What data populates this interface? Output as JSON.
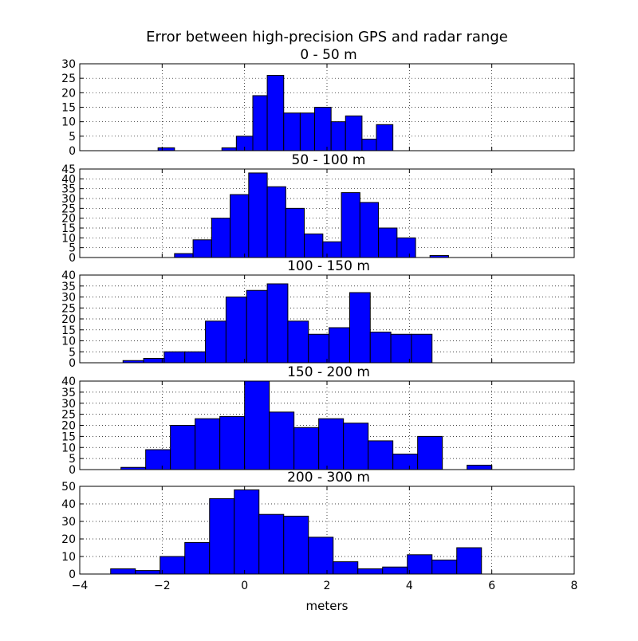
{
  "title": "Error between high-precision GPS and radar range",
  "xlabel": "meters",
  "bar_color": "#0000ff",
  "chart_data": [
    {
      "type": "bar",
      "subtitle": "0 - 50 m",
      "xlim": [
        -4,
        8
      ],
      "ylim": [
        0,
        30
      ],
      "yticks": [
        0,
        5,
        10,
        15,
        20,
        25,
        30
      ],
      "xticks": [
        -4,
        -2,
        0,
        2,
        4,
        6,
        8
      ],
      "grid": true,
      "bins": [
        {
          "x0": -2.1,
          "x1": -1.7,
          "count": 1
        },
        {
          "x0": -0.55,
          "x1": -0.2,
          "count": 1
        },
        {
          "x0": -0.2,
          "x1": 0.2,
          "count": 5
        },
        {
          "x0": 0.2,
          "x1": 0.55,
          "count": 19
        },
        {
          "x0": 0.55,
          "x1": 0.95,
          "count": 26
        },
        {
          "x0": 0.95,
          "x1": 1.35,
          "count": 13
        },
        {
          "x0": 1.35,
          "x1": 1.7,
          "count": 13
        },
        {
          "x0": 1.7,
          "x1": 2.1,
          "count": 15
        },
        {
          "x0": 2.1,
          "x1": 2.45,
          "count": 10
        },
        {
          "x0": 2.45,
          "x1": 2.85,
          "count": 12
        },
        {
          "x0": 2.85,
          "x1": 3.2,
          "count": 4
        },
        {
          "x0": 3.2,
          "x1": 3.6,
          "count": 9
        }
      ]
    },
    {
      "type": "bar",
      "subtitle": "50 - 100 m",
      "xlim": [
        -4,
        8
      ],
      "ylim": [
        0,
        45
      ],
      "yticks": [
        0,
        5,
        10,
        15,
        20,
        25,
        30,
        35,
        40,
        45
      ],
      "xticks": [
        -4,
        -2,
        0,
        2,
        4,
        6,
        8
      ],
      "grid": true,
      "bins": [
        {
          "x0": -1.7,
          "x1": -1.25,
          "count": 2
        },
        {
          "x0": -1.25,
          "x1": -0.8,
          "count": 9
        },
        {
          "x0": -0.8,
          "x1": -0.35,
          "count": 20
        },
        {
          "x0": -0.35,
          "x1": 0.1,
          "count": 32
        },
        {
          "x0": 0.1,
          "x1": 0.55,
          "count": 43
        },
        {
          "x0": 0.55,
          "x1": 1.0,
          "count": 36
        },
        {
          "x0": 1.0,
          "x1": 1.45,
          "count": 25
        },
        {
          "x0": 1.45,
          "x1": 1.9,
          "count": 12
        },
        {
          "x0": 1.9,
          "x1": 2.35,
          "count": 8
        },
        {
          "x0": 2.35,
          "x1": 2.8,
          "count": 33
        },
        {
          "x0": 2.8,
          "x1": 3.25,
          "count": 28
        },
        {
          "x0": 3.25,
          "x1": 3.7,
          "count": 15
        },
        {
          "x0": 3.7,
          "x1": 4.15,
          "count": 10
        },
        {
          "x0": 4.5,
          "x1": 4.95,
          "count": 1
        }
      ]
    },
    {
      "type": "bar",
      "subtitle": "100 - 150 m",
      "xlim": [
        -4,
        8
      ],
      "ylim": [
        0,
        40
      ],
      "yticks": [
        0,
        5,
        10,
        15,
        20,
        25,
        30,
        35,
        40
      ],
      "xticks": [
        -4,
        -2,
        0,
        2,
        4,
        6,
        8
      ],
      "grid": true,
      "bins": [
        {
          "x0": -2.95,
          "x1": -2.45,
          "count": 1
        },
        {
          "x0": -2.45,
          "x1": -1.95,
          "count": 2
        },
        {
          "x0": -1.95,
          "x1": -1.45,
          "count": 5
        },
        {
          "x0": -1.45,
          "x1": -0.95,
          "count": 5
        },
        {
          "x0": -0.95,
          "x1": -0.45,
          "count": 19
        },
        {
          "x0": -0.45,
          "x1": 0.05,
          "count": 30
        },
        {
          "x0": 0.05,
          "x1": 0.55,
          "count": 33
        },
        {
          "x0": 0.55,
          "x1": 1.05,
          "count": 36
        },
        {
          "x0": 1.05,
          "x1": 1.55,
          "count": 19
        },
        {
          "x0": 1.55,
          "x1": 2.05,
          "count": 13
        },
        {
          "x0": 2.05,
          "x1": 2.55,
          "count": 16
        },
        {
          "x0": 2.55,
          "x1": 3.05,
          "count": 32
        },
        {
          "x0": 3.05,
          "x1": 3.55,
          "count": 14
        },
        {
          "x0": 3.55,
          "x1": 4.05,
          "count": 13
        },
        {
          "x0": 4.05,
          "x1": 4.55,
          "count": 13
        }
      ]
    },
    {
      "type": "bar",
      "subtitle": "150 - 200 m",
      "xlim": [
        -4,
        8
      ],
      "ylim": [
        0,
        40
      ],
      "yticks": [
        0,
        5,
        10,
        15,
        20,
        25,
        30,
        35,
        40
      ],
      "xticks": [
        -4,
        -2,
        0,
        2,
        4,
        6,
        8
      ],
      "grid": true,
      "bins": [
        {
          "x0": -3.0,
          "x1": -2.4,
          "count": 1
        },
        {
          "x0": -2.4,
          "x1": -1.8,
          "count": 9
        },
        {
          "x0": -1.8,
          "x1": -1.2,
          "count": 20
        },
        {
          "x0": -1.2,
          "x1": -0.6,
          "count": 23
        },
        {
          "x0": -0.6,
          "x1": 0.0,
          "count": 24
        },
        {
          "x0": 0.0,
          "x1": 0.6,
          "count": 40
        },
        {
          "x0": 0.6,
          "x1": 1.2,
          "count": 26
        },
        {
          "x0": 1.2,
          "x1": 1.8,
          "count": 19
        },
        {
          "x0": 1.8,
          "x1": 2.4,
          "count": 23
        },
        {
          "x0": 2.4,
          "x1": 3.0,
          "count": 21
        },
        {
          "x0": 3.0,
          "x1": 3.6,
          "count": 13
        },
        {
          "x0": 3.6,
          "x1": 4.2,
          "count": 7
        },
        {
          "x0": 4.2,
          "x1": 4.8,
          "count": 15
        },
        {
          "x0": 5.4,
          "x1": 6.0,
          "count": 2
        }
      ]
    },
    {
      "type": "bar",
      "subtitle": "200 - 300 m",
      "xlim": [
        -4,
        8
      ],
      "ylim": [
        0,
        50
      ],
      "yticks": [
        0,
        10,
        20,
        30,
        40,
        50
      ],
      "xticks": [
        -4,
        -2,
        0,
        2,
        4,
        6,
        8
      ],
      "grid": true,
      "bins": [
        {
          "x0": -3.25,
          "x1": -2.65,
          "count": 3
        },
        {
          "x0": -2.65,
          "x1": -2.05,
          "count": 2
        },
        {
          "x0": -2.05,
          "x1": -1.45,
          "count": 10
        },
        {
          "x0": -1.45,
          "x1": -0.85,
          "count": 18
        },
        {
          "x0": -0.85,
          "x1": -0.25,
          "count": 43
        },
        {
          "x0": -0.25,
          "x1": 0.35,
          "count": 48
        },
        {
          "x0": 0.35,
          "x1": 0.95,
          "count": 34
        },
        {
          "x0": 0.95,
          "x1": 1.55,
          "count": 33
        },
        {
          "x0": 1.55,
          "x1": 2.15,
          "count": 21
        },
        {
          "x0": 2.15,
          "x1": 2.75,
          "count": 7
        },
        {
          "x0": 2.75,
          "x1": 3.35,
          "count": 3
        },
        {
          "x0": 3.35,
          "x1": 3.95,
          "count": 4
        },
        {
          "x0": 3.95,
          "x1": 4.55,
          "count": 11
        },
        {
          "x0": 4.55,
          "x1": 5.15,
          "count": 8
        },
        {
          "x0": 5.15,
          "x1": 5.75,
          "count": 15
        }
      ]
    }
  ]
}
